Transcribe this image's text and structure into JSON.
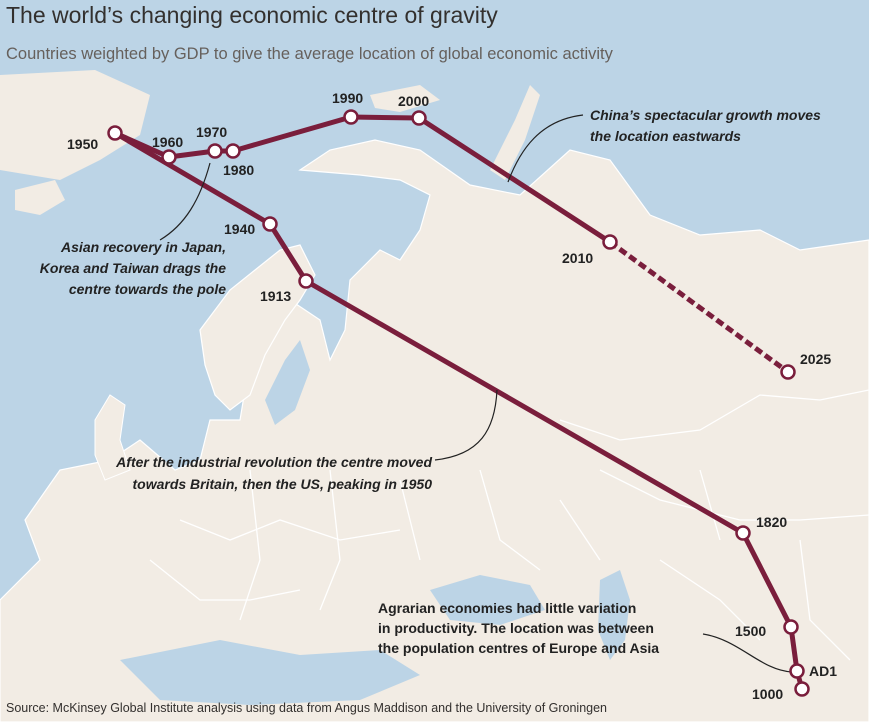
{
  "title": "The world’s changing economic centre of gravity",
  "subtitle": "Countries weighted by GDP to give the average location of global economic activity",
  "source": "Source: McKinsey Global Institute analysis using data from Angus Maddison and the University of Groningen",
  "colors": {
    "path": "#7a1e3c",
    "sea": "#bcd4e6",
    "land": "#f2ece4",
    "border": "#ffffff",
    "marker_fill": "#ffffff"
  },
  "points": [
    {
      "year": "1000",
      "projected": false
    },
    {
      "year": "AD1",
      "projected": false
    },
    {
      "year": "1500",
      "projected": false
    },
    {
      "year": "1820",
      "projected": false
    },
    {
      "year": "1913",
      "projected": false
    },
    {
      "year": "1940",
      "projected": false
    },
    {
      "year": "1950",
      "projected": false
    },
    {
      "year": "1960",
      "projected": false
    },
    {
      "year": "1970",
      "projected": false
    },
    {
      "year": "1980",
      "projected": false
    },
    {
      "year": "1990",
      "projected": false
    },
    {
      "year": "2000",
      "projected": false
    },
    {
      "year": "2010",
      "projected": false
    },
    {
      "year": "2025",
      "projected": true
    }
  ],
  "annotations": {
    "china": [
      "China’s spectacular growth moves",
      "the location eastwards"
    ],
    "asia": [
      "Asian recovery in Japan,",
      "Korea and Taiwan drags the",
      "centre towards the pole"
    ],
    "industrial": [
      "After the industrial revolution the centre moved",
      "towards Britain, then the US, peaking in 1950"
    ],
    "agrarian": [
      "Agrarian economies had little variation",
      "in productivity. The location was between",
      "the population centres of Europe and Asia"
    ]
  }
}
